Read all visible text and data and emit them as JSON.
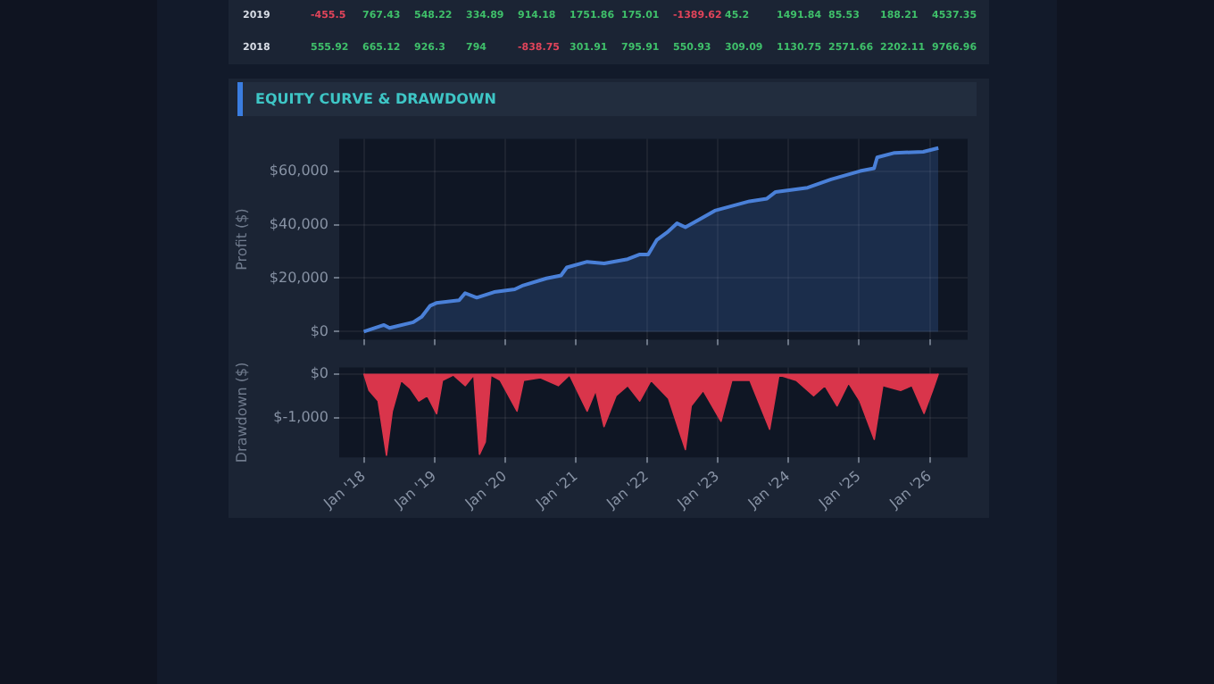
{
  "chart_data": [
    {
      "type": "area",
      "title": "EQUITY CURVE & DRAWDOWN",
      "ylabel": "Profit ($)",
      "annotations": [
        "2019 -455.5 767.43 548.22 334.89 914.18 1751.86 175.01 -1389.62 45.2 1491.84 85.53 188.21 4537.35",
        "2018 555.92 665.12 926.3 794 -838.75 301.91 795.91 550.93 309.09 1130.75 2571.66 2202.11 9766.96"
      ],
      "x": [
        "2018-01-01",
        "2018-04-15",
        "2018-05-14",
        "2018-09-13",
        "2018-10-26",
        "2018-12-10",
        "2019-01-10",
        "2019-05-08",
        "2019-06-08",
        "2019-08-07",
        "2019-11-05",
        "2020-02-19",
        "2020-04-03",
        "2020-08-01",
        "2020-10-15",
        "2020-11-14",
        "2021-02-27",
        "2021-05-26",
        "2021-09-24",
        "2021-11-23",
        "2022-01-08",
        "2022-02-22",
        "2022-04-21",
        "2022-06-06",
        "2022-07-19",
        "2022-09-19",
        "2022-12-18",
        "2023-06-15",
        "2023-09-13",
        "2023-10-28",
        "2024-04-10",
        "2024-08-09",
        "2025-01-06",
        "2025-03-19",
        "2025-04-04",
        "2025-07-03",
        "2025-11-28",
        "2026-02-14"
      ],
      "series": [
        {
          "color": "#4a80d8",
          "values": [
            0,
            2500,
            1400,
            3500,
            5500,
            9700,
            10700,
            11700,
            14400,
            12700,
            14800,
            15800,
            17300,
            19900,
            21000,
            24000,
            26100,
            25500,
            27100,
            28800,
            28800,
            34300,
            37400,
            40500,
            39000,
            41500,
            45200,
            48700,
            49700,
            52200,
            53800,
            56900,
            60000,
            61000,
            65100,
            66800,
            67200,
            68600
          ]
        }
      ],
      "xlim": [
        "2017-08-27",
        "2026-07-15"
      ],
      "xticks": [
        {
          "value": "2018-01-01",
          "label": null
        },
        {
          "value": "2019-01-01",
          "label": null
        },
        {
          "value": "2020-01-01",
          "label": null
        },
        {
          "value": "2021-01-01",
          "label": null
        },
        {
          "value": "2022-01-01",
          "label": null
        },
        {
          "value": "2023-01-01",
          "label": null
        },
        {
          "value": "2024-01-01",
          "label": null
        },
        {
          "value": "2025-01-01",
          "label": null
        },
        {
          "value": "2026-01-01",
          "label": null
        }
      ],
      "ylim": [
        -3000,
        72000
      ],
      "yticks": [
        {
          "value": 0,
          "label": "$0"
        },
        {
          "value": 20000,
          "label": "$20,000"
        },
        {
          "value": 40000,
          "label": "$40,000"
        },
        {
          "value": 60000,
          "label": "$60,000"
        }
      ],
      "tick_labels": "y",
      "grid": true,
      "marker": "none"
    },
    {
      "type": "area",
      "ylabel": "Drawdown ($)",
      "x": [
        "2018-01-01",
        "2018-01-28",
        "2018-03-16",
        "2018-04-28",
        "2018-05-28",
        "2018-07-12",
        "2018-08-28",
        "2018-10-12",
        "2018-11-25",
        "2019-01-12",
        "2019-02-11",
        "2019-04-08",
        "2019-06-09",
        "2019-07-23",
        "2019-08-21",
        "2019-09-20",
        "2019-10-19",
        "2019-12-06",
        "2020-03-02",
        "2020-04-05",
        "2020-07-01",
        "2020-10-01",
        "2020-11-28",
        "2021-02-27",
        "2021-04-12",
        "2021-05-25",
        "2021-07-26",
        "2021-09-24",
        "2021-11-25",
        "2022-01-23",
        "2022-04-23",
        "2022-07-19",
        "2022-08-18",
        "2022-10-19",
        "2023-01-19",
        "2023-03-16",
        "2023-06-17",
        "2023-09-27",
        "2023-11-14",
        "2024-02-11",
        "2024-05-11",
        "2024-07-08",
        "2024-09-09",
        "2024-11-07",
        "2025-01-05",
        "2025-03-20",
        "2025-05-03",
        "2025-08-03",
        "2025-10-01",
        "2025-12-02",
        "2026-01-15",
        "2026-02-14"
      ],
      "series": [
        {
          "color": "#d9354b",
          "values": [
            0,
            -380,
            -620,
            -1850,
            -850,
            -150,
            -330,
            -620,
            -500,
            -910,
            -150,
            -30,
            -270,
            -30,
            -1830,
            -1550,
            -30,
            -150,
            -850,
            -150,
            -90,
            -270,
            -30,
            -850,
            -380,
            -1200,
            -500,
            -270,
            -620,
            -150,
            -560,
            -1720,
            -730,
            -380,
            -1080,
            -150,
            -150,
            -1260,
            -30,
            -150,
            -500,
            -270,
            -730,
            -210,
            -620,
            -1490,
            -270,
            -380,
            -270,
            -900,
            -380,
            0
          ]
        }
      ],
      "xlim": [
        "2017-08-27",
        "2026-07-15"
      ],
      "xticks": [
        {
          "value": "2018-01-01",
          "label": "Jan '18"
        },
        {
          "value": "2019-01-01",
          "label": "Jan '19"
        },
        {
          "value": "2020-01-01",
          "label": "Jan '20"
        },
        {
          "value": "2021-01-01",
          "label": "Jan '21"
        },
        {
          "value": "2022-01-01",
          "label": "Jan '22"
        },
        {
          "value": "2023-01-01",
          "label": "Jan '23"
        },
        {
          "value": "2024-01-01",
          "label": "Jan '24"
        },
        {
          "value": "2025-01-01",
          "label": "Jan '25"
        },
        {
          "value": "2026-01-01",
          "label": "Jan '26"
        }
      ],
      "ylim": [
        -1900,
        140
      ],
      "yticks": [
        {
          "value": 0,
          "label": "$0"
        },
        {
          "value": -1000,
          "label": "$-1,000"
        }
      ],
      "grid": true,
      "marker": "none"
    }
  ]
}
